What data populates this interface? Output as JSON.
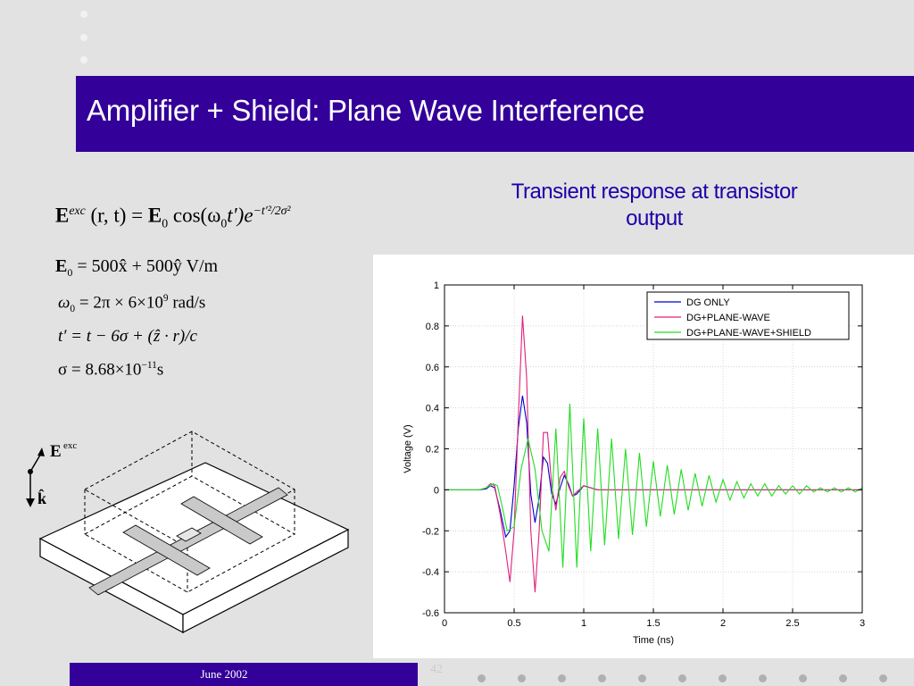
{
  "slide": {
    "title": "Amplifier + Shield: Plane Wave Interference",
    "footer_date": "June 2002",
    "page_number": "42",
    "colors": {
      "title_bar": "#330099",
      "heading": "#1c00a8",
      "background": "#e2e2e2"
    }
  },
  "chart_heading": {
    "line1": "Transient response at transistor",
    "line2": "output"
  },
  "equations": {
    "main": {
      "E": "E",
      "exc": "exc",
      "args": " (r, t) = ",
      "E0": "E",
      "zero": "0",
      "cos": " cos(ω",
      "zero2": "0",
      "tprime": "t′)e",
      "exp": "−t′²/2σ²"
    },
    "e0": "= 500x̂ + 500ŷ  V/m",
    "omega": "= 2π × 6×10",
    "omega_exp": "9",
    "omega_unit": " rad/s",
    "tprime": "t′ = t − 6σ + (ẑ · r)/c",
    "sigma": "σ = 8.68×10",
    "sigma_exp": "−11",
    "sigma_unit": "s"
  },
  "diagram_labels": {
    "field": "E",
    "field_sup": "exc",
    "k": "k̂"
  },
  "chart_data": {
    "type": "line",
    "xlabel": "Time (ns)",
    "ylabel": "Voltage (V)",
    "xlim": [
      0,
      3
    ],
    "ylim": [
      -0.6,
      1
    ],
    "xticks": [
      0,
      0.5,
      1,
      1.5,
      2,
      2.5,
      3
    ],
    "xtick_labels": [
      "0",
      "0.5",
      "1",
      "1.5",
      "2",
      "2.5",
      "3"
    ],
    "yticks": [
      -0.6,
      -0.4,
      -0.2,
      0,
      0.2,
      0.4,
      0.6,
      0.8,
      1
    ],
    "ytick_labels": [
      "-0.6",
      "-0.4",
      "-0.2",
      "0",
      "0.2",
      "0.4",
      "0.6",
      "0.8",
      "1"
    ],
    "grid": true,
    "legend_position": "top-right",
    "series": [
      {
        "name": "DG ONLY",
        "color": "#0000cc",
        "x": [
          0,
          0.25,
          0.3,
          0.33,
          0.36,
          0.4,
          0.44,
          0.47,
          0.5,
          0.53,
          0.56,
          0.59,
          0.62,
          0.65,
          0.68,
          0.71,
          0.74,
          0.77,
          0.8,
          0.83,
          0.86,
          0.89,
          0.92,
          0.95,
          1.0,
          1.05,
          1.1,
          1.2,
          1.4,
          1.7,
          2.0,
          2.5,
          3.0
        ],
        "y": [
          0,
          0,
          0.005,
          0.02,
          0.01,
          -0.1,
          -0.23,
          -0.2,
          0.02,
          0.3,
          0.46,
          0.33,
          -0.02,
          -0.16,
          -0.04,
          0.16,
          0.13,
          -0.02,
          -0.07,
          0.01,
          0.07,
          0.03,
          -0.03,
          -0.02,
          0.02,
          0.01,
          0.0,
          0.0,
          0.0,
          0.0,
          0.0,
          0.0,
          0.0
        ]
      },
      {
        "name": "DG+PLANE-WAVE",
        "color": "#e0207a",
        "x": [
          0,
          0.25,
          0.3,
          0.33,
          0.36,
          0.4,
          0.44,
          0.47,
          0.5,
          0.53,
          0.56,
          0.59,
          0.62,
          0.65,
          0.68,
          0.71,
          0.74,
          0.77,
          0.8,
          0.83,
          0.86,
          0.89,
          0.92,
          0.95,
          1.0,
          1.05,
          1.1,
          1.2,
          1.4,
          1.7,
          2.0,
          2.5,
          3.0
        ],
        "y": [
          0,
          0,
          0.01,
          0.03,
          0.02,
          -0.12,
          -0.3,
          -0.45,
          -0.2,
          0.35,
          0.85,
          0.55,
          -0.2,
          -0.5,
          -0.2,
          0.28,
          0.28,
          0.02,
          -0.1,
          0.06,
          0.09,
          0.02,
          -0.03,
          -0.01,
          0.02,
          0.01,
          0.0,
          0.0,
          0.0,
          0.0,
          0.0,
          0.0,
          0.0
        ]
      },
      {
        "name": "DG+PLANE-WAVE+SHIELD",
        "color": "#22dd22",
        "x": [
          0,
          0.25,
          0.3,
          0.35,
          0.38,
          0.42,
          0.45,
          0.5,
          0.55,
          0.6,
          0.65,
          0.7,
          0.75,
          0.8,
          0.85,
          0.9,
          0.95,
          1.0,
          1.05,
          1.1,
          1.15,
          1.2,
          1.25,
          1.3,
          1.35,
          1.4,
          1.45,
          1.5,
          1.55,
          1.6,
          1.65,
          1.7,
          1.75,
          1.8,
          1.85,
          1.9,
          1.95,
          2.0,
          2.05,
          2.1,
          2.15,
          2.2,
          2.25,
          2.3,
          2.35,
          2.4,
          2.45,
          2.5,
          2.55,
          2.6,
          2.65,
          2.7,
          2.75,
          2.8,
          2.85,
          2.9,
          2.95,
          3.0
        ],
        "y": [
          0,
          0,
          0.01,
          0.03,
          0.02,
          -0.1,
          -0.2,
          -0.18,
          0.1,
          0.25,
          0.1,
          -0.2,
          -0.3,
          0.3,
          -0.38,
          0.42,
          -0.38,
          0.35,
          -0.3,
          0.3,
          -0.27,
          0.25,
          -0.24,
          0.2,
          -0.22,
          0.18,
          -0.18,
          0.14,
          -0.13,
          0.12,
          -0.12,
          0.1,
          -0.1,
          0.08,
          -0.08,
          0.07,
          -0.06,
          0.05,
          -0.05,
          0.04,
          -0.04,
          0.03,
          -0.03,
          0.03,
          -0.03,
          0.02,
          -0.02,
          0.02,
          -0.02,
          0.02,
          -0.01,
          0.01,
          -0.01,
          0.01,
          -0.01,
          0.01,
          -0.01,
          0.01
        ]
      }
    ]
  }
}
